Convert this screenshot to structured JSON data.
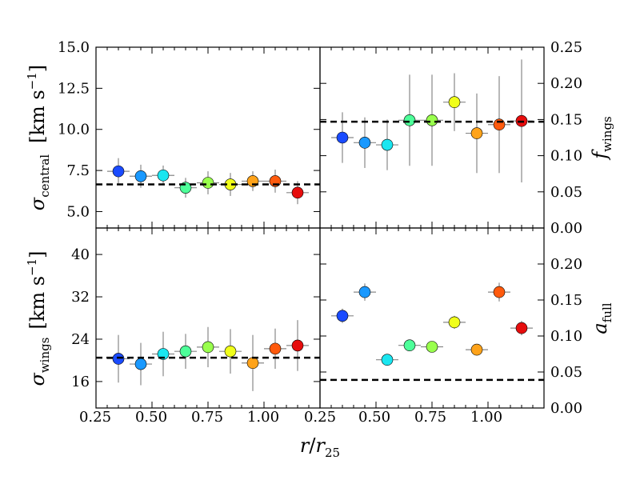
{
  "figure": {
    "xlabel_main": "r",
    "xlabel_denom": "r",
    "xlabel_denom_sub": "25",
    "x_tick_labels": [
      "0.25",
      "0.50",
      "0.75",
      "1.00",
      "0.25",
      "0.50",
      "0.75",
      "1.00"
    ]
  },
  "chart_data": [
    {
      "id": "sigma_central",
      "type": "scatter",
      "ylabel": "σ",
      "ylabel_sub": "central",
      "ylabel_unit": "[km s",
      "ylabel_unit_sup": "−1",
      "ylabel_unit_close": "]",
      "xlim": [
        0.25,
        1.25
      ],
      "ylim": [
        4.0,
        15.0
      ],
      "yticks": [
        5.0,
        7.5,
        10.0,
        12.5,
        15.0
      ],
      "ytick_labels": [
        "5.0",
        "7.5",
        "10.0",
        "12.5",
        "15.0"
      ],
      "ref_line": 6.65,
      "x": [
        0.35,
        0.45,
        0.55,
        0.65,
        0.75,
        0.85,
        0.95,
        1.05,
        1.15
      ],
      "y": [
        7.45,
        7.15,
        7.2,
        6.45,
        6.75,
        6.65,
        6.85,
        6.85,
        6.15
      ],
      "yerr": [
        0.8,
        0.7,
        0.6,
        0.6,
        0.7,
        0.7,
        0.6,
        0.7,
        0.7
      ]
    },
    {
      "id": "f_wings",
      "type": "scatter",
      "ylabel": "f",
      "ylabel_sub": "wings",
      "xlim": [
        0.25,
        1.25
      ],
      "ylim": [
        0.0,
        0.25
      ],
      "yticks": [
        0.0,
        0.05,
        0.1,
        0.15,
        0.2,
        0.25
      ],
      "ytick_labels": [
        "0.00",
        "0.05",
        "0.10",
        "0.15",
        "0.20",
        "0.25"
      ],
      "ref_line": 0.147,
      "x": [
        0.35,
        0.45,
        0.55,
        0.65,
        0.75,
        0.85,
        0.95,
        1.05,
        1.15
      ],
      "y": [
        0.125,
        0.118,
        0.115,
        0.149,
        0.149,
        0.174,
        0.131,
        0.143,
        0.148
      ],
      "yerr": [
        0.035,
        0.035,
        0.035,
        0.063,
        0.063,
        0.04,
        0.055,
        0.067,
        0.085
      ]
    },
    {
      "id": "sigma_wings",
      "type": "scatter",
      "ylabel": "σ",
      "ylabel_sub": "wings",
      "ylabel_unit": "[km s",
      "ylabel_unit_sup": "−1",
      "ylabel_unit_close": "]",
      "xlim": [
        0.25,
        1.25
      ],
      "ylim": [
        11.0,
        45.0
      ],
      "yticks": [
        16,
        24,
        32,
        40
      ],
      "ytick_labels": [
        "16",
        "24",
        "32",
        "40"
      ],
      "ref_line": 20.5,
      "x": [
        0.35,
        0.45,
        0.55,
        0.65,
        0.75,
        0.85,
        0.95,
        1.05,
        1.15
      ],
      "y": [
        20.3,
        19.3,
        21.2,
        21.7,
        22.5,
        21.7,
        19.5,
        22.2,
        22.8
      ],
      "yerr": [
        4.5,
        4.0,
        4.2,
        3.3,
        3.8,
        4.2,
        5.3,
        3.8,
        4.8
      ]
    },
    {
      "id": "a_full",
      "type": "scatter",
      "ylabel": "a",
      "ylabel_sub": "full",
      "xlim": [
        0.25,
        1.25
      ],
      "ylim": [
        0.0,
        0.25
      ],
      "yticks": [
        0.0,
        0.05,
        0.1,
        0.15,
        0.2
      ],
      "ytick_labels": [
        "0.00",
        "0.05",
        "0.10",
        "0.15",
        "0.20"
      ],
      "ref_line": 0.039,
      "x": [
        0.35,
        0.45,
        0.55,
        0.65,
        0.75,
        0.85,
        0.95,
        1.05,
        1.15
      ],
      "y": [
        0.128,
        0.161,
        0.067,
        0.087,
        0.085,
        0.119,
        0.081,
        0.161,
        0.111
      ],
      "yerr": [
        0.01,
        0.012,
        0.007,
        0.006,
        0.006,
        0.009,
        0.006,
        0.013,
        0.01
      ]
    }
  ],
  "colors": {
    "points": [
      "#1a4bff",
      "#1a99ff",
      "#1ae6f0",
      "#4dff99",
      "#99ff4d",
      "#f0ff1a",
      "#ffa31a",
      "#ff5a0d",
      "#e60d0d"
    ],
    "errorbar": "#888888",
    "ref_line": "#000000"
  }
}
